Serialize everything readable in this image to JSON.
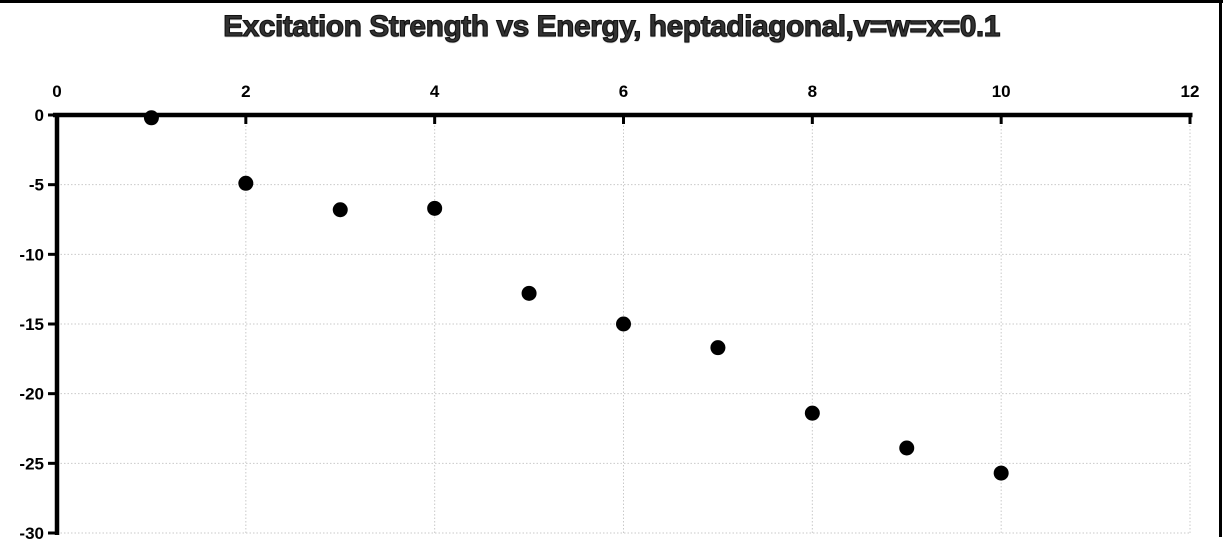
{
  "chart_data": {
    "type": "scatter",
    "title": "Excitation Strength vs Energy, heptadiagonal,v=w=x=0.1",
    "x": [
      1,
      2,
      3,
      4,
      5,
      6,
      7,
      8,
      9,
      10
    ],
    "y": [
      -0.2,
      -4.9,
      -6.8,
      -6.7,
      -12.8,
      -15.0,
      -16.7,
      -21.4,
      -23.9,
      -25.7
    ],
    "series_name": "Excitation Strength",
    "xlabel": "",
    "ylabel": "",
    "xlim": [
      0,
      12
    ],
    "ylim": [
      -30,
      0
    ],
    "x_ticks": [
      0,
      2,
      4,
      6,
      8,
      10,
      12
    ],
    "y_ticks": [
      0,
      -5,
      -10,
      -15,
      -20,
      -25,
      -30
    ],
    "x_tick_labels": [
      "0",
      "2",
      "4",
      "6",
      "8",
      "10",
      "12"
    ],
    "y_tick_labels": [
      "0",
      "-5",
      "-10",
      "-15",
      "-20",
      "-25",
      "-30"
    ],
    "x_axis_position": "top",
    "grid": true,
    "gridline_style": "dotted",
    "legend": false,
    "marker": {
      "shape": "circle",
      "color": "#000000",
      "radius_px": 7.5
    },
    "colors": {
      "background": "#ffffff",
      "axis": "#000000",
      "gridline": "#c9c9c9",
      "tick_label": "#000000",
      "title": "#323232",
      "outer_border": "#000000"
    }
  }
}
